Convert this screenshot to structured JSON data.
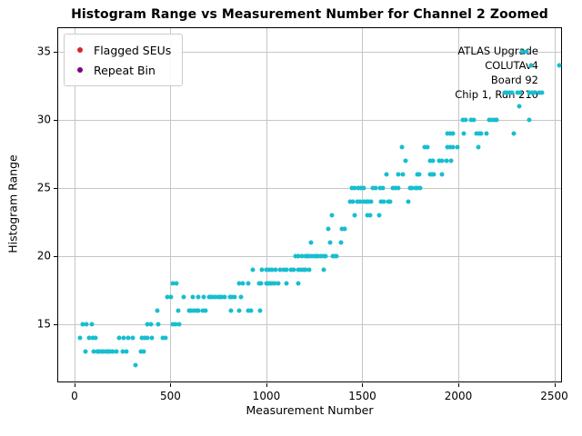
{
  "title": "Histogram Range vs Measurement Number for Channel 2 Zoomed",
  "xlabel": "Measurement Number",
  "ylabel": "Histogram Range",
  "legend": {
    "items": [
      {
        "label": "Flagged SEUs",
        "color": "#d62728"
      },
      {
        "label": "Repeat Bin",
        "color": "#800080"
      }
    ]
  },
  "annotation": {
    "lines": [
      "ATLAS Upgrade",
      "COLUTAv4",
      "Board 92",
      "Chip 1, Run 210"
    ]
  },
  "colors": {
    "points": "#17becf",
    "grid": "#c6c6c6",
    "spine": "#000000",
    "background": "#ffffff"
  },
  "chart_data": {
    "type": "scatter",
    "title": "Histogram Range vs Measurement Number for Channel 2 Zoomed",
    "xlabel": "Measurement Number",
    "ylabel": "Histogram Range",
    "xlim": [
      -85,
      2545
    ],
    "ylim": [
      10.7,
      36.73
    ],
    "xticks": [
      0,
      500,
      1000,
      1500,
      2000,
      2500
    ],
    "yticks": [
      15,
      20,
      25,
      30,
      35
    ],
    "grid": true,
    "legend_position": "upper left",
    "annotation_lines": [
      "ATLAS Upgrade",
      "COLUTAv4",
      "Board 92",
      "Chip 1, Run 210"
    ],
    "series": [
      {
        "name": "Histogram Range",
        "color": "#17becf",
        "points": [
          [
            316,
            12
          ],
          [
            55,
            13
          ],
          [
            102,
            13
          ],
          [
            117,
            13
          ],
          [
            129,
            13
          ],
          [
            142,
            13
          ],
          [
            152,
            13
          ],
          [
            165,
            13
          ],
          [
            176,
            13
          ],
          [
            187,
            13
          ],
          [
            200,
            13
          ],
          [
            216,
            13
          ],
          [
            250,
            13
          ],
          [
            270,
            13
          ],
          [
            344,
            13
          ],
          [
            360,
            13
          ],
          [
            27,
            14
          ],
          [
            74,
            14
          ],
          [
            93,
            14
          ],
          [
            110,
            14
          ],
          [
            231,
            14
          ],
          [
            255,
            14
          ],
          [
            282,
            14
          ],
          [
            302,
            14
          ],
          [
            349,
            14
          ],
          [
            365,
            14
          ],
          [
            381,
            14
          ],
          [
            404,
            14
          ],
          [
            459,
            14
          ],
          [
            475,
            14
          ],
          [
            45,
            15
          ],
          [
            62,
            15
          ],
          [
            88,
            15
          ],
          [
            381,
            15
          ],
          [
            396,
            15
          ],
          [
            435,
            15
          ],
          [
            514,
            15
          ],
          [
            528,
            15
          ],
          [
            544,
            15
          ],
          [
            431,
            16
          ],
          [
            542,
            16
          ],
          [
            596,
            16
          ],
          [
            608,
            16
          ],
          [
            621,
            16
          ],
          [
            633,
            16
          ],
          [
            645,
            16
          ],
          [
            668,
            16
          ],
          [
            681,
            16
          ],
          [
            816,
            16
          ],
          [
            860,
            16
          ],
          [
            904,
            16
          ],
          [
            920,
            16
          ],
          [
            967,
            16
          ],
          [
            483,
            17
          ],
          [
            501,
            17
          ],
          [
            569,
            17
          ],
          [
            616,
            17
          ],
          [
            643,
            17
          ],
          [
            671,
            17
          ],
          [
            700,
            17
          ],
          [
            711,
            17
          ],
          [
            722,
            17
          ],
          [
            734,
            17
          ],
          [
            747,
            17
          ],
          [
            758,
            17
          ],
          [
            769,
            17
          ],
          [
            782,
            17
          ],
          [
            810,
            17
          ],
          [
            822,
            17
          ],
          [
            833,
            17
          ],
          [
            868,
            17
          ],
          [
            514,
            18
          ],
          [
            530,
            18
          ],
          [
            858,
            18
          ],
          [
            877,
            18
          ],
          [
            904,
            18
          ],
          [
            962,
            18
          ],
          [
            973,
            18
          ],
          [
            999,
            18
          ],
          [
            1009,
            18
          ],
          [
            1020,
            18
          ],
          [
            1030,
            18
          ],
          [
            1041,
            18
          ],
          [
            1061,
            18
          ],
          [
            1104,
            18
          ],
          [
            1164,
            18
          ],
          [
            929,
            19
          ],
          [
            976,
            19
          ],
          [
            1000,
            19
          ],
          [
            1014,
            19
          ],
          [
            1028,
            19
          ],
          [
            1047,
            19
          ],
          [
            1071,
            19
          ],
          [
            1090,
            19
          ],
          [
            1104,
            19
          ],
          [
            1127,
            19
          ],
          [
            1141,
            19
          ],
          [
            1165,
            19
          ],
          [
            1182,
            19
          ],
          [
            1195,
            19
          ],
          [
            1206,
            19
          ],
          [
            1222,
            19
          ],
          [
            1297,
            19
          ],
          [
            1154,
            20
          ],
          [
            1167,
            20
          ],
          [
            1183,
            20
          ],
          [
            1203,
            20
          ],
          [
            1214,
            20
          ],
          [
            1225,
            20
          ],
          [
            1237,
            20
          ],
          [
            1249,
            20
          ],
          [
            1261,
            20
          ],
          [
            1272,
            20
          ],
          [
            1285,
            20
          ],
          [
            1297,
            20
          ],
          [
            1308,
            20
          ],
          [
            1348,
            20
          ],
          [
            1356,
            20
          ],
          [
            1363,
            20
          ],
          [
            1230,
            21
          ],
          [
            1331,
            21
          ],
          [
            1387,
            21
          ],
          [
            1321,
            22
          ],
          [
            1393,
            22
          ],
          [
            1407,
            22
          ],
          [
            1340,
            23
          ],
          [
            1458,
            23
          ],
          [
            1528,
            23
          ],
          [
            1540,
            23
          ],
          [
            1588,
            23
          ],
          [
            1434,
            24
          ],
          [
            1449,
            24
          ],
          [
            1476,
            24
          ],
          [
            1489,
            24
          ],
          [
            1509,
            24
          ],
          [
            1520,
            24
          ],
          [
            1533,
            24
          ],
          [
            1544,
            24
          ],
          [
            1599,
            24
          ],
          [
            1612,
            24
          ],
          [
            1634,
            24
          ],
          [
            1646,
            24
          ],
          [
            1741,
            24
          ],
          [
            1445,
            25
          ],
          [
            1460,
            25
          ],
          [
            1481,
            25
          ],
          [
            1492,
            25
          ],
          [
            1505,
            25
          ],
          [
            1555,
            25
          ],
          [
            1567,
            25
          ],
          [
            1594,
            25
          ],
          [
            1607,
            25
          ],
          [
            1659,
            25
          ],
          [
            1673,
            25
          ],
          [
            1687,
            25
          ],
          [
            1748,
            25
          ],
          [
            1760,
            25
          ],
          [
            1775,
            25
          ],
          [
            1788,
            25
          ],
          [
            1800,
            25
          ],
          [
            1627,
            26
          ],
          [
            1687,
            26
          ],
          [
            1709,
            26
          ],
          [
            1785,
            26
          ],
          [
            1797,
            26
          ],
          [
            1851,
            26
          ],
          [
            1863,
            26
          ],
          [
            1874,
            26
          ],
          [
            1916,
            26
          ],
          [
            1725,
            27
          ],
          [
            1854,
            27
          ],
          [
            1866,
            27
          ],
          [
            1899,
            27
          ],
          [
            1914,
            27
          ],
          [
            1937,
            27
          ],
          [
            1963,
            27
          ],
          [
            1704,
            28
          ],
          [
            1825,
            28
          ],
          [
            1840,
            28
          ],
          [
            1945,
            28
          ],
          [
            1958,
            28
          ],
          [
            1973,
            28
          ],
          [
            1997,
            28
          ],
          [
            2102,
            28
          ],
          [
            1945,
            29
          ],
          [
            1958,
            29
          ],
          [
            1970,
            29
          ],
          [
            2027,
            29
          ],
          [
            2094,
            29
          ],
          [
            2107,
            29
          ],
          [
            2118,
            29
          ],
          [
            2146,
            29
          ],
          [
            2288,
            29
          ],
          [
            2024,
            30
          ],
          [
            2036,
            30
          ],
          [
            2068,
            30
          ],
          [
            2080,
            30
          ],
          [
            2161,
            30
          ],
          [
            2174,
            30
          ],
          [
            2188,
            30
          ],
          [
            2200,
            30
          ],
          [
            2369,
            30
          ],
          [
            2316,
            31
          ],
          [
            2240,
            32
          ],
          [
            2252,
            32
          ],
          [
            2264,
            32
          ],
          [
            2278,
            32
          ],
          [
            2307,
            32
          ],
          [
            2322,
            32
          ],
          [
            2369,
            32
          ],
          [
            2385,
            32
          ],
          [
            2400,
            32
          ],
          [
            2424,
            32
          ],
          [
            2437,
            32
          ],
          [
            2377,
            34
          ],
          [
            2527,
            34
          ],
          [
            2330,
            35
          ],
          [
            2354,
            35
          ]
        ]
      },
      {
        "name": "Flagged SEUs",
        "color": "#d62728",
        "points": []
      },
      {
        "name": "Repeat Bin",
        "color": "#800080",
        "points": []
      }
    ]
  }
}
